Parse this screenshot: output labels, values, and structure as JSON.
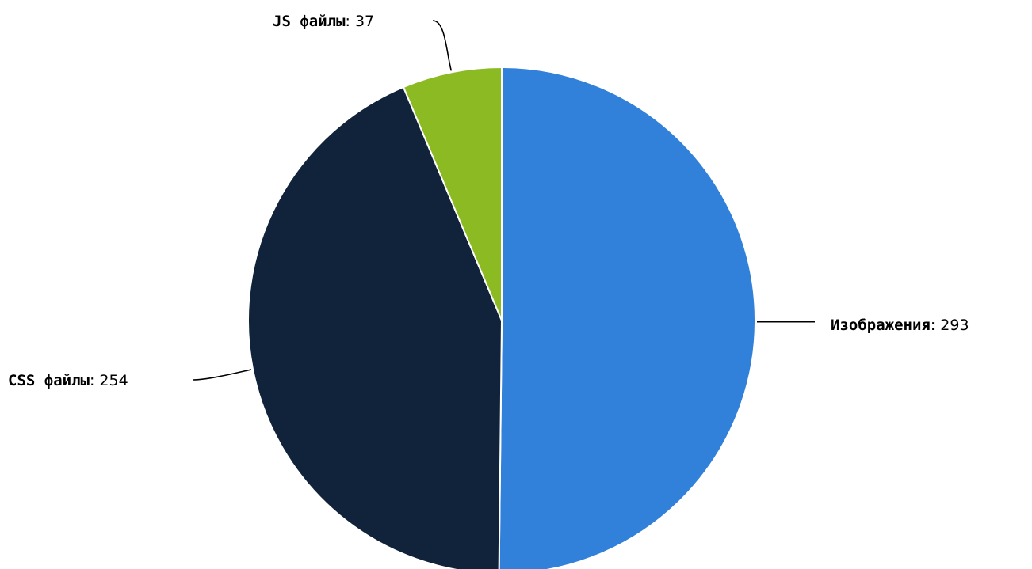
{
  "chart_data": {
    "type": "pie",
    "title": "",
    "slices": [
      {
        "label": "Изображения",
        "value": 293,
        "color": "#3180da"
      },
      {
        "label": "CSS файлы",
        "value": 254,
        "color": "#11233b"
      },
      {
        "label": "JS файлы",
        "value": 37,
        "color": "#8cba23"
      }
    ],
    "legend": "none",
    "data_labels": "outside-with-connectors"
  }
}
